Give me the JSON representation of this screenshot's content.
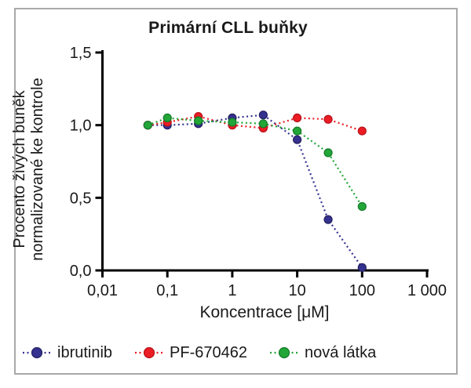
{
  "figure": {
    "frame_border_color": "#a9a9a9",
    "background_color": "#ffffff",
    "axis_color": "#000000"
  },
  "chart_data": {
    "type": "line",
    "title": "Primární CLL buňky",
    "xlabel": "Koncentrace [μM]",
    "ylabel_line1": "Procento živých buněk",
    "ylabel_line2": "normalizované ke kontrole",
    "x_scale": "log",
    "xlim": [
      0.01,
      1000
    ],
    "ylim": [
      0.0,
      1.5
    ],
    "x_ticks": [
      {
        "value": 0.01,
        "label": "0,01"
      },
      {
        "value": 0.1,
        "label": "0,1"
      },
      {
        "value": 1,
        "label": "1"
      },
      {
        "value": 10,
        "label": "10"
      },
      {
        "value": 100,
        "label": "100"
      },
      {
        "value": 1000,
        "label": "1 000"
      }
    ],
    "y_ticks": [
      {
        "value": 0.0,
        "label": "0,0"
      },
      {
        "value": 0.5,
        "label": "0,5"
      },
      {
        "value": 1.0,
        "label": "1,0"
      },
      {
        "value": 1.5,
        "label": "1,5"
      }
    ],
    "x": [
      0.05,
      0.1,
      0.3,
      1,
      3,
      10,
      30,
      100
    ],
    "series": [
      {
        "name": "ibrutinib",
        "color": "#35318F",
        "edge": "#232060",
        "values": [
          1.0,
          1.0,
          1.01,
          1.05,
          1.07,
          0.9,
          0.35,
          0.02
        ]
      },
      {
        "name": "PF-670462",
        "color": "#EC1C24",
        "edge": "#b5121a",
        "values": [
          1.0,
          1.02,
          1.06,
          1.0,
          0.98,
          1.05,
          1.04,
          0.96
        ]
      },
      {
        "name": "nová látka",
        "color": "#22A638",
        "edge": "#157a28",
        "values": [
          1.0,
          1.05,
          1.03,
          1.02,
          1.01,
          0.96,
          0.81,
          0.44
        ]
      }
    ],
    "line_style": "dotted",
    "marker": "circle",
    "legend_position": "bottom",
    "grid": false
  }
}
